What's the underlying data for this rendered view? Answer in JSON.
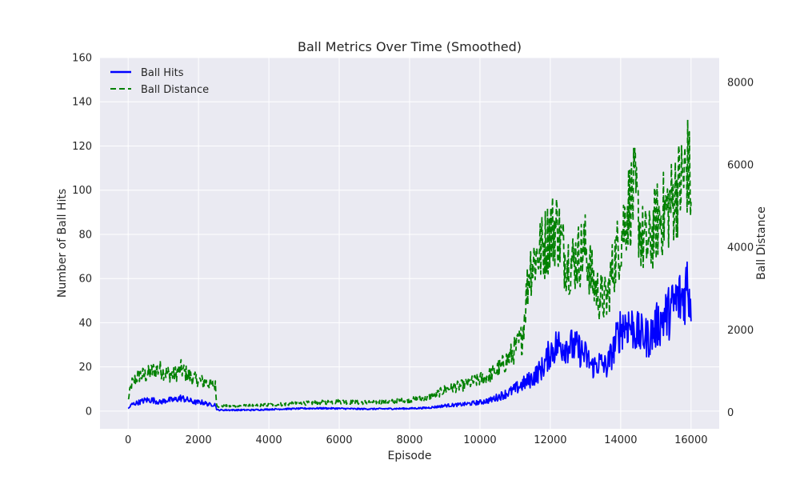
{
  "chart_data": {
    "type": "line",
    "title": "Ball Metrics Over Time (Smoothed)",
    "xlabel": "Episode",
    "ylabel": "Number of Ball Hits",
    "y2label": "Ball Distance",
    "xlim": [
      -800,
      16800
    ],
    "ylim": [
      -8,
      160
    ],
    "y2lim": [
      -400,
      8600
    ],
    "xticks": [
      0,
      2000,
      4000,
      6000,
      8000,
      10000,
      12000,
      14000,
      16000
    ],
    "xtick_labels": [
      "0",
      "2000",
      "4000",
      "6000",
      "8000",
      "10000",
      "12000",
      "14000",
      "16000"
    ],
    "yticks": [
      0,
      20,
      40,
      60,
      80,
      100,
      120,
      140,
      160
    ],
    "ytick_labels": [
      "0",
      "20",
      "40",
      "60",
      "80",
      "100",
      "120",
      "140",
      "160"
    ],
    "y2ticks": [
      0,
      2000,
      4000,
      6000,
      8000
    ],
    "y2tick_labels": [
      "0",
      "2000",
      "4000",
      "6000",
      "8000"
    ],
    "grid": true,
    "legend_position": "top-left",
    "colors": {
      "ball_hits": "#0000ff",
      "ball_distance": "#008000",
      "plot_bg": "#eaeaf2",
      "grid": "#ffffff"
    },
    "series": [
      {
        "name": "Ball Hits",
        "axis": "left",
        "style": "solid",
        "x": [
          0,
          100,
          300,
          500,
          700,
          900,
          1100,
          1300,
          1500,
          1700,
          1900,
          2100,
          2300,
          2480,
          2520,
          3000,
          3500,
          4000,
          4500,
          5000,
          5500,
          6000,
          6500,
          7000,
          7500,
          8000,
          8500,
          8800,
          9000,
          9500,
          10000,
          10300,
          10600,
          10900,
          11200,
          11500,
          11800,
          12000,
          12200,
          12500,
          12800,
          13000,
          13200,
          13400,
          13600,
          13800,
          14000,
          14200,
          14500,
          14800,
          15000,
          15200,
          15400,
          15600,
          15800,
          15900,
          16000
        ],
        "y": [
          1,
          3,
          4,
          5,
          5,
          4,
          5,
          5,
          6,
          5,
          4,
          4,
          3,
          3,
          0.5,
          0.5,
          0.5,
          0.8,
          1,
          1.2,
          1.3,
          1.2,
          1,
          1,
          1.1,
          1.2,
          1.5,
          2,
          2.5,
          3,
          4,
          5,
          7,
          9,
          12,
          15,
          20,
          27,
          30,
          30,
          28,
          25,
          20,
          22,
          20,
          28,
          38,
          40,
          35,
          33,
          38,
          42,
          45,
          50,
          52,
          60,
          48
        ]
      },
      {
        "name": "Ball Distance",
        "axis": "right",
        "style": "dashed",
        "x": [
          0,
          100,
          300,
          500,
          700,
          900,
          1100,
          1300,
          1500,
          1700,
          1900,
          2100,
          2300,
          2480,
          2520,
          3000,
          3500,
          4000,
          4500,
          5000,
          5500,
          6000,
          6500,
          7000,
          7500,
          8000,
          8500,
          8800,
          9000,
          9500,
          10000,
          10300,
          10600,
          10900,
          11200,
          11400,
          11600,
          11800,
          12000,
          12200,
          12400,
          12600,
          12800,
          13000,
          13200,
          13400,
          13600,
          13800,
          14000,
          14200,
          14400,
          14600,
          14800,
          15000,
          15200,
          15400,
          15600,
          15800,
          15900,
          16000
        ],
        "y": [
          300,
          700,
          900,
          900,
          1000,
          1050,
          950,
          900,
          1050,
          900,
          800,
          750,
          700,
          650,
          150,
          150,
          160,
          180,
          200,
          220,
          240,
          260,
          240,
          250,
          260,
          300,
          350,
          450,
          550,
          650,
          800,
          900,
          1100,
          1400,
          1800,
          3500,
          3800,
          4000,
          4400,
          4500,
          3800,
          3600,
          3800,
          4000,
          3200,
          2800,
          2700,
          3600,
          4200,
          5000,
          5300,
          4200,
          4000,
          4600,
          4800,
          5000,
          5400,
          5700,
          6000,
          5400
        ]
      }
    ]
  }
}
